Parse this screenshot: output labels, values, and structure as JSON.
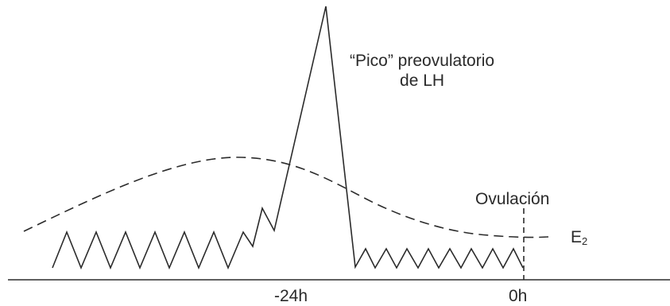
{
  "annotations": {
    "peak_label_line1": "“Pico” preovulatorio",
    "peak_label_line2": "de LH",
    "ovulation_label": "Ovulación",
    "e2_label_main": "E",
    "e2_label_sub": "2"
  },
  "axis": {
    "tick_minus24": "-24h",
    "tick_zero": "0h"
  },
  "colors": {
    "line": "#2b2b2b",
    "background": "#ffffff"
  }
}
